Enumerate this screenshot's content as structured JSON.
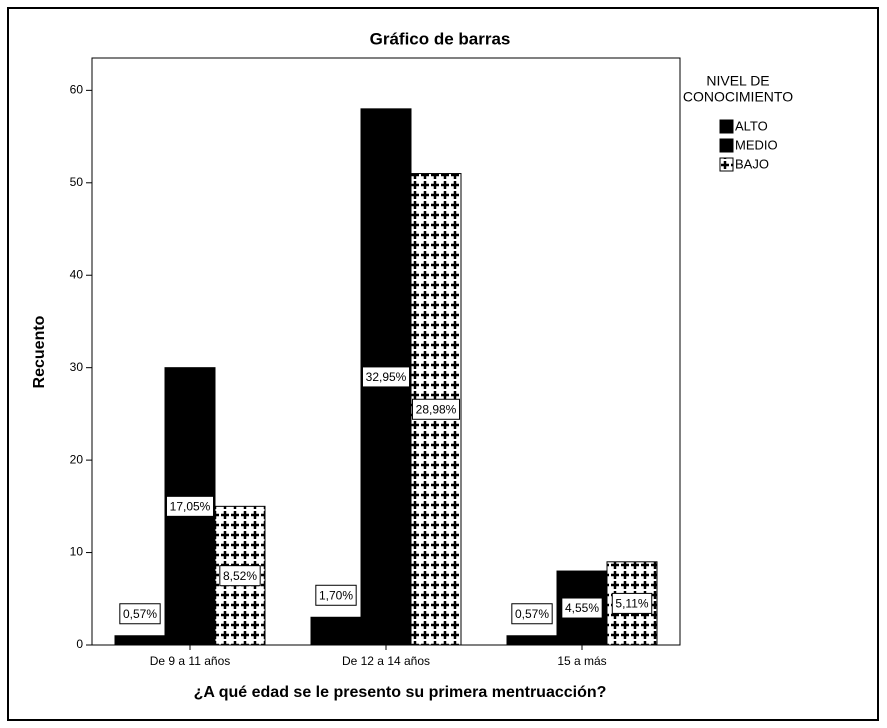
{
  "chart_data": {
    "type": "bar",
    "title": "Gráfico de barras",
    "x_label": "¿A qué edad se le presento su primera mentruacción?",
    "y_label": "Recuento",
    "categories": [
      "De 9 a 11 años",
      "De 12 a 14 años",
      "15 a más"
    ],
    "legend_title": [
      "NIVEL DE",
      "CONOCIMIENTO"
    ],
    "legend_position": "right",
    "series": [
      {
        "name": "ALTO",
        "color": "#000000",
        "values": [
          1,
          3,
          1
        ],
        "percent_values": [
          0.57,
          1.7,
          0.57
        ],
        "percent_labels": [
          "0,57%",
          "1,70%",
          "0,57%"
        ]
      },
      {
        "name": "MEDIO",
        "color": "#000000",
        "values": [
          30,
          58,
          8
        ],
        "percent_values": [
          17.05,
          32.95,
          4.55
        ],
        "percent_labels": [
          "17,05%",
          "32,95%",
          "4,55%"
        ]
      },
      {
        "name": "BAJO",
        "color": "#ffffff",
        "pattern": "cross",
        "values": [
          15,
          51,
          9
        ],
        "percent_values": [
          8.52,
          28.98,
          5.11
        ],
        "percent_labels": [
          "8,52%",
          "28,98%",
          "5,11%"
        ]
      }
    ],
    "ylim": [
      0,
      63.5
    ],
    "yticks": [
      0,
      10,
      20,
      30,
      40,
      50,
      60
    ],
    "grid": false
  }
}
